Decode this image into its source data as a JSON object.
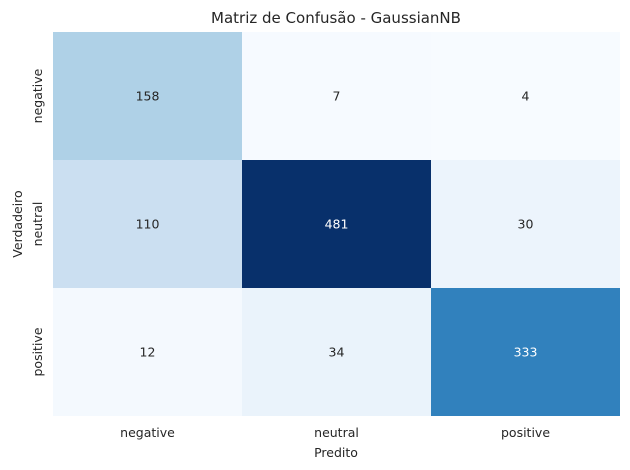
{
  "chart_data": {
    "type": "heatmap",
    "title": "Matriz de Confusão - GaussianNB",
    "xlabel": "Predito",
    "ylabel": "Verdadeiro",
    "x_categories": [
      "negative",
      "neutral",
      "positive"
    ],
    "y_categories": [
      "negative",
      "neutral",
      "positive"
    ],
    "values": [
      [
        158,
        7,
        4
      ],
      [
        110,
        481,
        30
      ],
      [
        12,
        34,
        333
      ]
    ],
    "colormap": "Blues",
    "colorbar": false,
    "annotated": true
  }
}
